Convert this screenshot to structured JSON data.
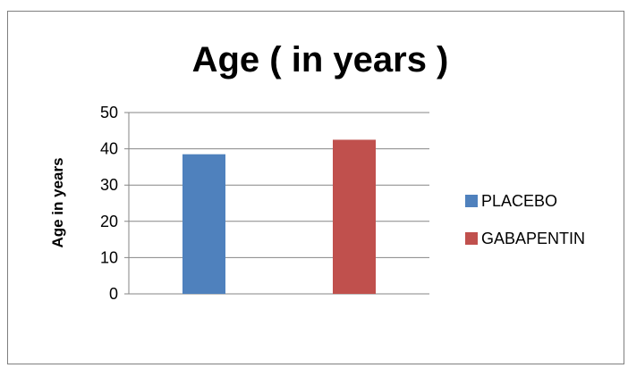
{
  "chart_data": {
    "type": "bar",
    "title": "Age ( in years )",
    "xlabel": "",
    "ylabel": "Age in years",
    "ylim": [
      0,
      50
    ],
    "yticks": [
      0,
      10,
      20,
      30,
      40,
      50
    ],
    "grid": true,
    "legend_position": "right",
    "series": [
      {
        "name": "PLACEBO",
        "value": 38.5,
        "color": "#4f81bd"
      },
      {
        "name": "GABAPENTIN",
        "value": 42.5,
        "color": "#c0504d"
      }
    ]
  }
}
